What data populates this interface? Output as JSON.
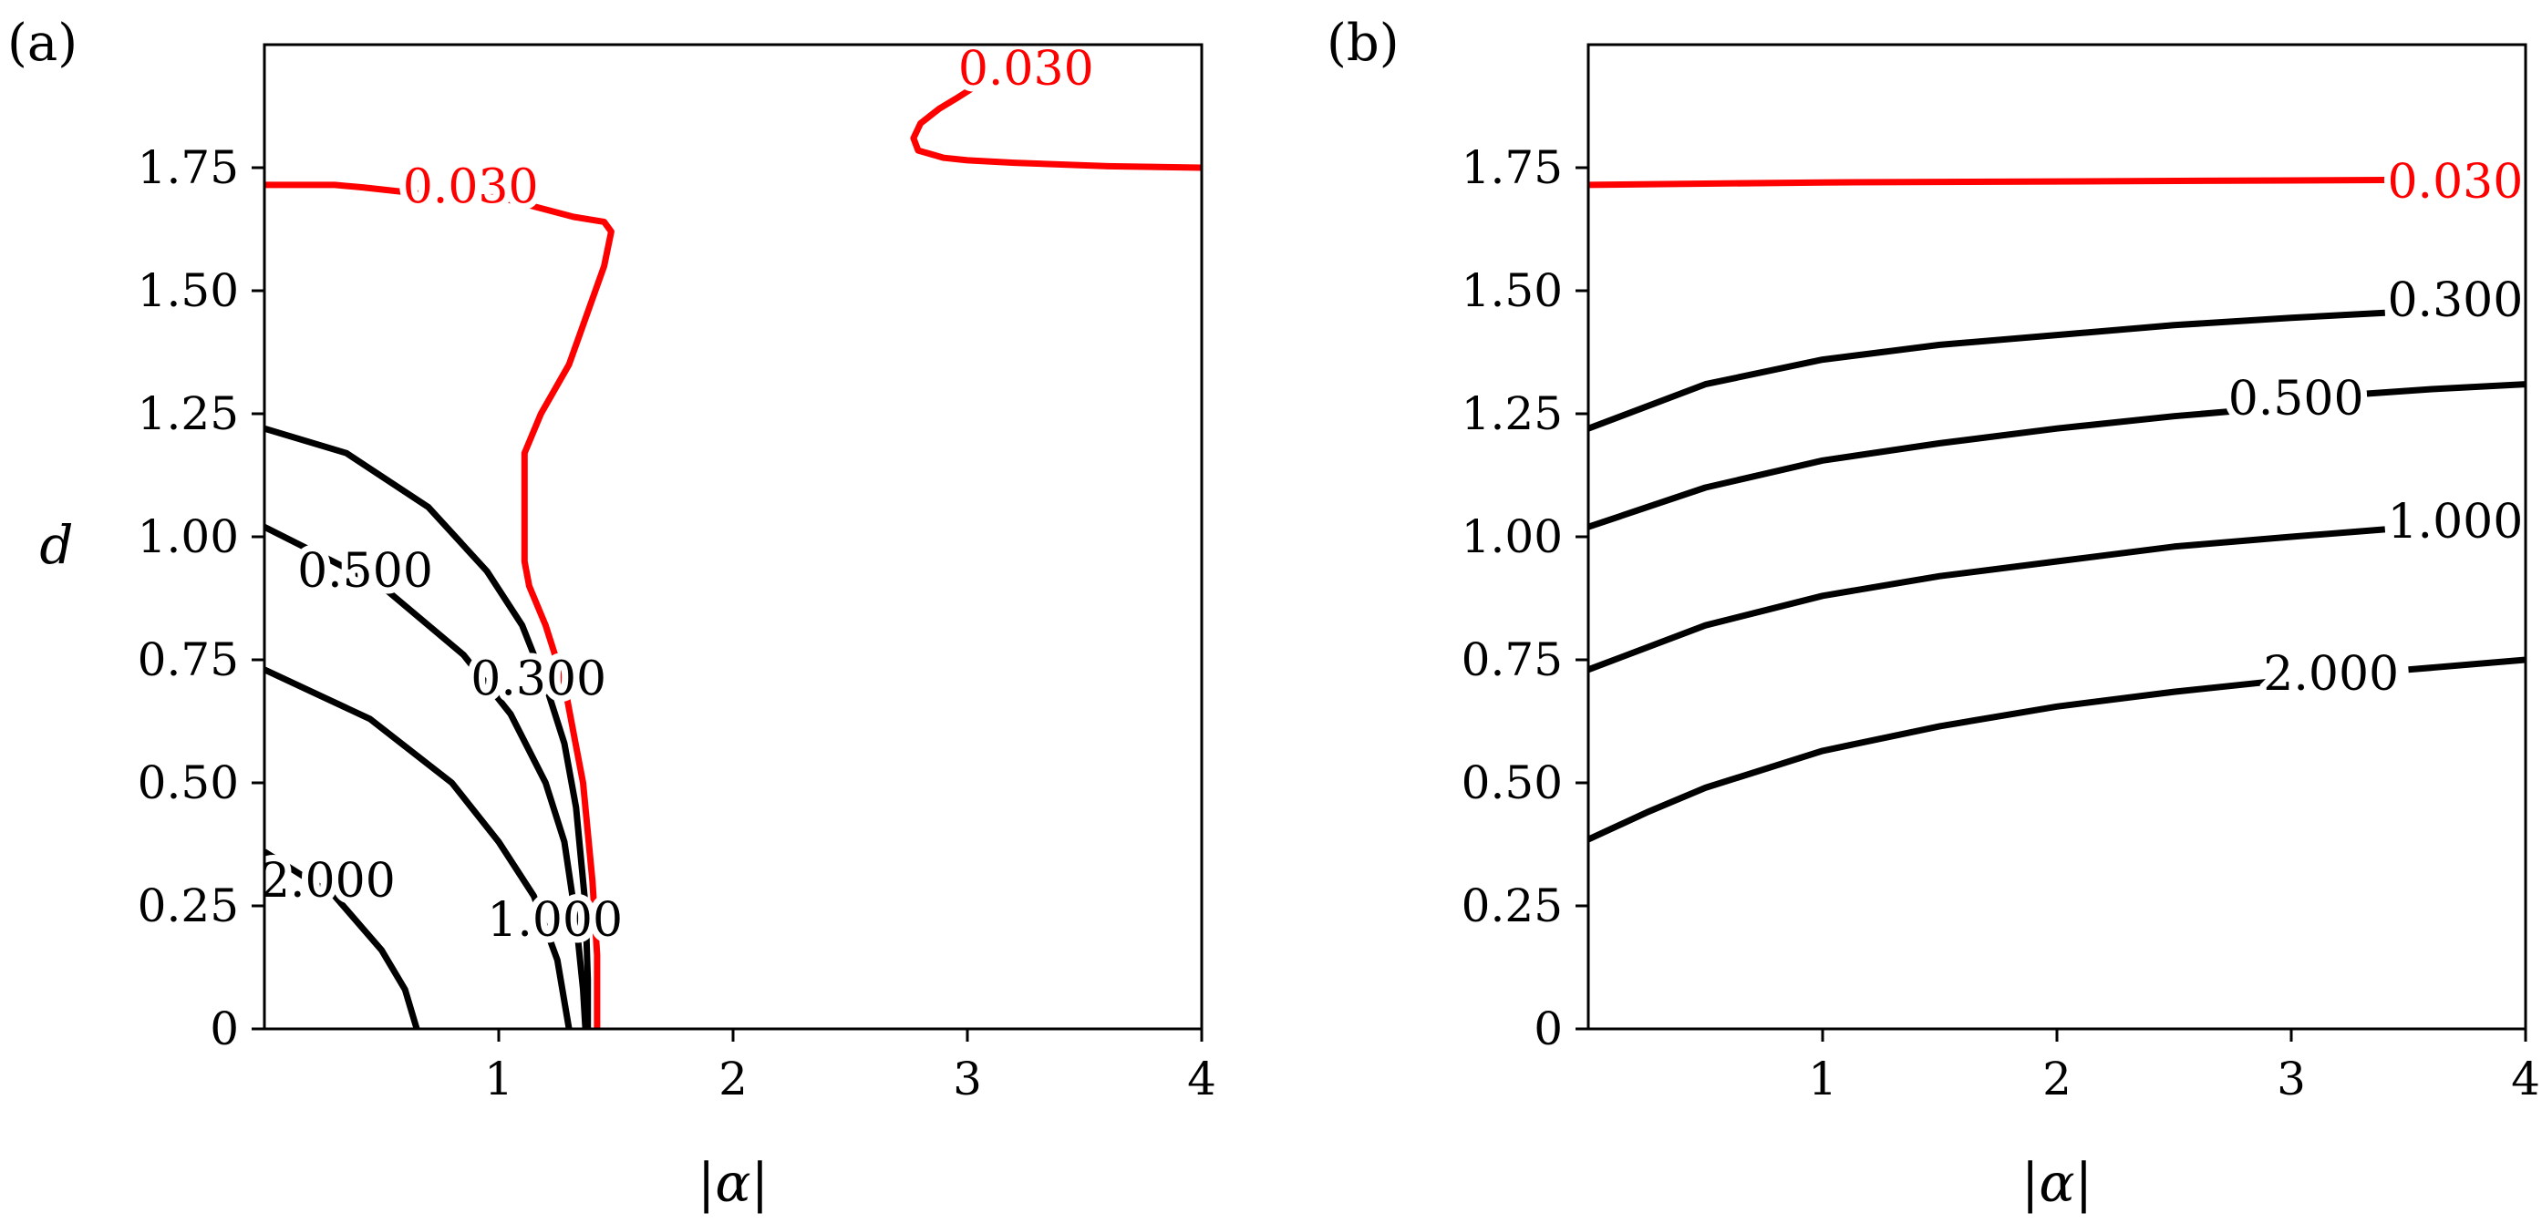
{
  "figure": {
    "panels": [
      "(a)",
      "(b)"
    ]
  },
  "chart_data": [
    {
      "type": "contour",
      "panel_label": "(a)",
      "xlabel": "|α|",
      "ylabel": "d",
      "xlim": [
        0,
        4
      ],
      "ylim": [
        0,
        2
      ],
      "xticks": [
        1,
        2,
        3,
        4
      ],
      "xtick_labels": [
        "1",
        "2",
        "3",
        "4"
      ],
      "yticks": [
        0,
        0.25,
        0.5,
        0.75,
        1.0,
        1.25,
        1.5,
        1.75
      ],
      "ytick_labels": [
        "0",
        "0.25",
        "0.50",
        "0.75",
        "1.00",
        "1.25",
        "1.50",
        "1.75"
      ],
      "grid": false,
      "contours": [
        {
          "level": "0.030",
          "color": "#ff0000",
          "points": [
            [
              0,
              1.715
            ],
            [
              0.3,
              1.715
            ],
            [
              0.42,
              1.71
            ],
            [
              0.8,
              1.69
            ],
            [
              1.0,
              1.69
            ],
            [
              1.32,
              1.65
            ],
            [
              1.45,
              1.64
            ],
            [
              1.48,
              1.62
            ],
            [
              1.45,
              1.55
            ],
            [
              1.3,
              1.35
            ],
            [
              1.18,
              1.25
            ],
            [
              1.11,
              1.17
            ],
            [
              1.11,
              0.95
            ],
            [
              1.13,
              0.9
            ],
            [
              1.2,
              0.82
            ],
            [
              1.28,
              0.7
            ],
            [
              1.32,
              0.6
            ],
            [
              1.36,
              0.5
            ],
            [
              1.4,
              0.3
            ],
            [
              1.42,
              0.15
            ],
            [
              1.42,
              0.0
            ]
          ],
          "label_x": 0.88,
          "label_y": 1.71
        },
        {
          "level": "0.030",
          "color": "#ff0000",
          "points": [
            [
              4.0,
              1.75
            ],
            [
              3.6,
              1.753
            ],
            [
              3.2,
              1.76
            ],
            [
              3.0,
              1.765
            ],
            [
              2.9,
              1.77
            ],
            [
              2.79,
              1.785
            ],
            [
              2.77,
              1.81
            ],
            [
              2.8,
              1.84
            ],
            [
              2.88,
              1.87
            ],
            [
              2.95,
              1.89
            ],
            [
              3.05,
              1.92
            ]
          ],
          "label_x": 3.25,
          "label_y": 1.95
        },
        {
          "level": "0.300",
          "color": "#000000",
          "points": [
            [
              0,
              1.22
            ],
            [
              0.35,
              1.17
            ],
            [
              0.7,
              1.06
            ],
            [
              0.95,
              0.93
            ],
            [
              1.1,
              0.82
            ],
            [
              1.2,
              0.7
            ],
            [
              1.28,
              0.58
            ],
            [
              1.33,
              0.45
            ],
            [
              1.37,
              0.25
            ],
            [
              1.38,
              0.1
            ],
            [
              1.38,
              0
            ]
          ],
          "label_x": 1.17,
          "label_y": 0.71
        },
        {
          "level": "0.500",
          "color": "#000000",
          "points": [
            [
              0,
              1.02
            ],
            [
              0.5,
              0.9
            ],
            [
              0.85,
              0.76
            ],
            [
              1.05,
              0.64
            ],
            [
              1.2,
              0.5
            ],
            [
              1.28,
              0.38
            ],
            [
              1.33,
              0.22
            ],
            [
              1.36,
              0.08
            ],
            [
              1.37,
              0
            ]
          ],
          "label_x": 0.43,
          "label_y": 0.93
        },
        {
          "level": "1.000",
          "color": "#000000",
          "points": [
            [
              0,
              0.73
            ],
            [
              0.45,
              0.63
            ],
            [
              0.8,
              0.5
            ],
            [
              1.0,
              0.38
            ],
            [
              1.15,
              0.27
            ],
            [
              1.25,
              0.14
            ],
            [
              1.3,
              0
            ],
            [
              1.3,
              0
            ]
          ],
          "label_x": 1.24,
          "label_y": 0.22
        },
        {
          "level": "2.000",
          "color": "#000000",
          "points": [
            [
              0,
              0.36
            ],
            [
              0.3,
              0.27
            ],
            [
              0.5,
              0.16
            ],
            [
              0.6,
              0.08
            ],
            [
              0.65,
              0
            ]
          ],
          "label_x": 0.27,
          "label_y": 0.3
        }
      ]
    },
    {
      "type": "contour",
      "panel_label": "(b)",
      "xlabel": "|α|",
      "ylabel": "",
      "xlim": [
        0,
        4
      ],
      "ylim": [
        0,
        2
      ],
      "xticks": [
        1,
        2,
        3,
        4
      ],
      "xtick_labels": [
        "1",
        "2",
        "3",
        "4"
      ],
      "yticks": [
        0,
        0.25,
        0.5,
        0.75,
        1.0,
        1.25,
        1.5,
        1.75
      ],
      "ytick_labels": [
        "0",
        "0.25",
        "0.50",
        "0.75",
        "1.00",
        "1.25",
        "1.50",
        "1.75"
      ],
      "grid": false,
      "contours": [
        {
          "level": "0.030",
          "color": "#ff0000",
          "points": [
            [
              0,
              1.715
            ],
            [
              1,
              1.72
            ],
            [
              2,
              1.722
            ],
            [
              3,
              1.724
            ],
            [
              3.4,
              1.725
            ]
          ],
          "label_x": 3.7,
          "label_y": 1.72
        },
        {
          "level": "0.300",
          "color": "#000000",
          "points": [
            [
              0,
              1.22
            ],
            [
              0.5,
              1.31
            ],
            [
              1,
              1.36
            ],
            [
              1.5,
              1.39
            ],
            [
              2,
              1.41
            ],
            [
              2.5,
              1.43
            ],
            [
              3,
              1.445
            ],
            [
              3.4,
              1.455
            ]
          ],
          "label_x": 3.7,
          "label_y": 1.48
        },
        {
          "level": "0.500",
          "color": "#000000",
          "points": [
            [
              0,
              1.02
            ],
            [
              0.5,
              1.1
            ],
            [
              1,
              1.155
            ],
            [
              1.5,
              1.19
            ],
            [
              2,
              1.22
            ],
            [
              2.5,
              1.245
            ],
            [
              2.75,
              1.255
            ]
          ],
          "label_x": 3.02,
          "label_y": 1.28,
          "after": [
            [
              3.3,
              1.29
            ],
            [
              3.6,
              1.3
            ],
            [
              4,
              1.31
            ]
          ]
        },
        {
          "level": "1.000",
          "color": "#000000",
          "points": [
            [
              0,
              0.73
            ],
            [
              0.5,
              0.82
            ],
            [
              1,
              0.88
            ],
            [
              1.5,
              0.92
            ],
            [
              2,
              0.95
            ],
            [
              2.5,
              0.98
            ],
            [
              3,
              1.0
            ],
            [
              3.4,
              1.015
            ]
          ],
          "label_x": 3.7,
          "label_y": 1.03
        },
        {
          "level": "2.000",
          "color": "#000000",
          "points": [
            [
              0,
              0.385
            ],
            [
              0.25,
              0.44
            ],
            [
              0.5,
              0.49
            ],
            [
              1,
              0.565
            ],
            [
              1.5,
              0.615
            ],
            [
              2,
              0.655
            ],
            [
              2.5,
              0.685
            ],
            [
              2.9,
              0.705
            ]
          ],
          "label_x": 3.17,
          "label_y": 0.72,
          "after": [
            [
              3.5,
              0.73
            ],
            [
              4,
              0.75
            ]
          ]
        }
      ]
    }
  ]
}
